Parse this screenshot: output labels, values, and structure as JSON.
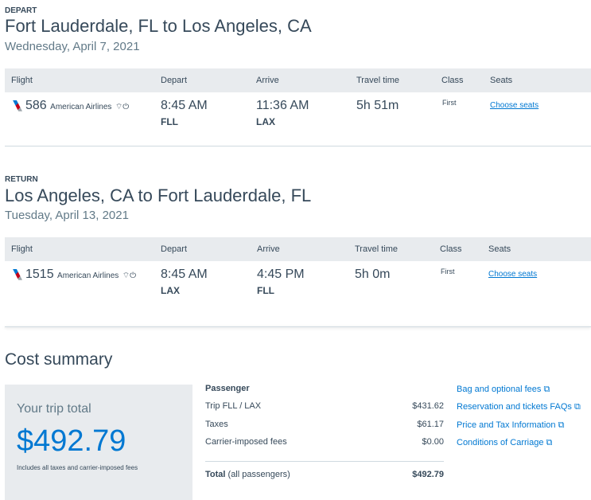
{
  "columns": [
    "Flight",
    "Depart",
    "Arrive",
    "Travel time",
    "Class",
    "Seats"
  ],
  "depart": {
    "label": "DEPART",
    "route": "Fort Lauderdale, FL to Los Angeles, CA",
    "date": "Wednesday, April 7, 2021",
    "flight": {
      "number": "586",
      "airline": "American Airlines",
      "amenities": [
        "wifi-icon",
        "power-icon"
      ],
      "depart_time": "8:45 AM",
      "depart_code": "FLL",
      "arrive_time": "11:36 AM",
      "arrive_code": "LAX",
      "travel_time": "5h 51m",
      "class": "First",
      "seats": "Choose seats"
    }
  },
  "return": {
    "label": "RETURN",
    "route": "Los Angeles, CA to Fort Lauderdale, FL",
    "date": "Tuesday, April 13, 2021",
    "flight": {
      "number": "1515",
      "airline": "American Airlines",
      "amenities": [
        "wifi-icon",
        "power-icon"
      ],
      "depart_time": "8:45 AM",
      "depart_code": "LAX",
      "arrive_time": "4:45 PM",
      "arrive_code": "FLL",
      "travel_time": "5h 0m",
      "class": "First",
      "seats": "Choose seats"
    }
  },
  "cost": {
    "title": "Cost summary",
    "trip_total_label": "Your trip total",
    "trip_total": "$492.79",
    "note": "Includes all taxes and carrier-imposed fees",
    "passenger": "Passenger",
    "lines": [
      {
        "label": "Trip FLL / LAX",
        "value": "$431.62"
      },
      {
        "label": "Taxes",
        "value": "$61.17"
      },
      {
        "label": "Carrier-imposed fees",
        "value": "$0.00"
      }
    ],
    "total_label": "Total",
    "total_suffix": "(all passengers)",
    "total": "$492.79",
    "links": [
      "Bag and optional fees",
      "Reservation and tickets FAQs",
      "Price and Tax Information",
      "Conditions of Carriage"
    ]
  },
  "colors": {
    "link": "#0078d2",
    "header_bg": "#e8ebee",
    "text": "#36495a"
  }
}
